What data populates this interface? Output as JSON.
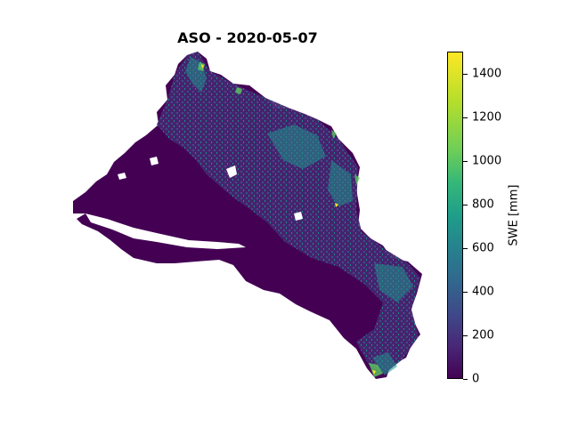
{
  "title": "ASO - 2020-05-07",
  "colorbar": {
    "label": "SWE [mm]",
    "colormap": "viridis",
    "range": [
      0,
      1500
    ],
    "ticks": [
      "0",
      "200",
      "400",
      "600",
      "800",
      "1000",
      "1200",
      "1400"
    ]
  },
  "colors": {
    "low": "#440154",
    "mid": "#31688e",
    "high": "#fde725"
  }
}
